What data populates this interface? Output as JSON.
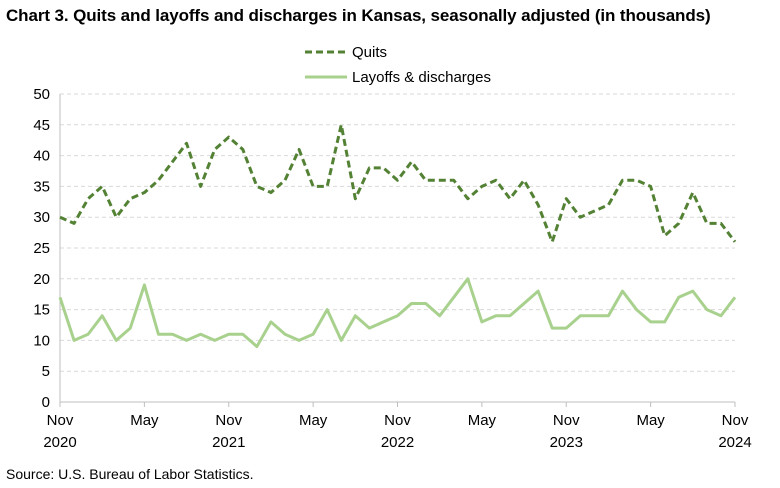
{
  "title": "Chart 3. Quits and layoffs and discharges in Kansas, seasonally adjusted (in thousands)",
  "source": "Source: U.S. Bureau of Labor Statistics.",
  "chart_data": {
    "type": "line",
    "title": "Chart 3. Quits and layoffs and discharges in Kansas, seasonally adjusted (in thousands)",
    "xlabel": "",
    "ylabel": "",
    "ylim": [
      0,
      50
    ],
    "yticks": [
      "0",
      "5",
      "10",
      "15",
      "20",
      "25",
      "30",
      "35",
      "40",
      "45",
      "50"
    ],
    "x_tick_labels": [
      {
        "month": "Nov",
        "year": "2020"
      },
      {
        "month": "May",
        "year": ""
      },
      {
        "month": "Nov",
        "year": "2021"
      },
      {
        "month": "May",
        "year": ""
      },
      {
        "month": "Nov",
        "year": "2022"
      },
      {
        "month": "May",
        "year": ""
      },
      {
        "month": "Nov",
        "year": "2023"
      },
      {
        "month": "May",
        "year": ""
      },
      {
        "month": "Nov",
        "year": "2024"
      }
    ],
    "x_start": "2020-11",
    "x_end": "2024-11",
    "grid": true,
    "legend_position": "top-center",
    "series": [
      {
        "name": "Quits",
        "style": "dashed",
        "color": "#548235",
        "values": [
          30,
          29,
          33,
          35,
          30,
          33,
          34,
          36,
          39,
          42,
          35,
          41,
          43,
          41,
          35,
          34,
          36,
          41,
          35,
          35,
          45,
          33,
          38,
          38,
          36,
          39,
          36,
          36,
          36,
          33,
          35,
          36,
          33,
          36,
          32,
          26,
          33,
          30,
          31,
          32,
          36,
          36,
          35,
          27,
          29,
          34,
          29,
          29,
          26
        ]
      },
      {
        "name": "Layoffs & discharges",
        "style": "solid",
        "color": "#a9d18e",
        "values": [
          17,
          10,
          11,
          14,
          10,
          12,
          19,
          11,
          11,
          10,
          11,
          10,
          11,
          11,
          9,
          13,
          11,
          10,
          11,
          15,
          10,
          14,
          12,
          13,
          14,
          16,
          16,
          14,
          17,
          20,
          13,
          14,
          14,
          16,
          18,
          12,
          12,
          14,
          14,
          14,
          18,
          15,
          13,
          13,
          17,
          18,
          15,
          14,
          17
        ]
      }
    ]
  }
}
